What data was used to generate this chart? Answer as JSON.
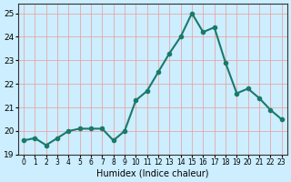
{
  "x": [
    0,
    1,
    2,
    3,
    4,
    5,
    6,
    7,
    8,
    9,
    10,
    11,
    12,
    13,
    14,
    15,
    16,
    17,
    18,
    19,
    20,
    21,
    22,
    23
  ],
  "y": [
    19.6,
    19.7,
    19.4,
    19.7,
    20.0,
    20.1,
    20.1,
    20.1,
    19.6,
    20.0,
    21.3,
    21.7,
    22.5,
    23.3,
    24.0,
    25.0,
    24.2,
    24.4,
    22.9,
    21.6,
    21.8,
    21.4,
    20.9,
    20.5
  ],
  "line_color": "#1a7a6a",
  "marker": "o",
  "markersize": 3,
  "linewidth": 1.5,
  "bg_color": "#cceeff",
  "plot_bg_color": "#cceeff",
  "grid_color": "#ee9999",
  "xlabel": "Humidex (Indice chaleur)",
  "ylabel": "",
  "ylim": [
    19,
    25.4
  ],
  "xlim": [
    -0.5,
    23.5
  ],
  "yticks": [
    19,
    20,
    21,
    22,
    23,
    24,
    25
  ],
  "xtick_labels": [
    "0",
    "1",
    "2",
    "3",
    "4",
    "5",
    "6",
    "7",
    "8",
    "9",
    "10",
    "11",
    "12",
    "13",
    "14",
    "15",
    "16",
    "17",
    "18",
    "19",
    "20",
    "21",
    "22",
    "23"
  ]
}
